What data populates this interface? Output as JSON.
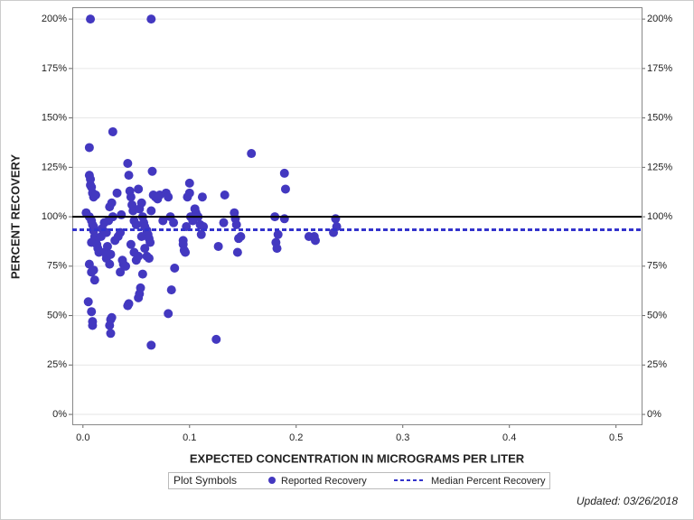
{
  "chart_data": {
    "type": "scatter",
    "x_label": "EXPECTED CONCENTRATION IN MICROGRAMS PER LITER",
    "y_label": "PERCENT RECOVERY",
    "x": [
      0.007,
      0.064,
      0.006,
      0.028,
      0.006,
      0.007,
      0.007,
      0.008,
      0.009,
      0.01,
      0.012,
      0.003,
      0.006,
      0.008,
      0.009,
      0.01,
      0.011,
      0.012,
      0.013,
      0.008,
      0.01,
      0.014,
      0.015,
      0.017,
      0.018,
      0.02,
      0.022,
      0.024,
      0.025,
      0.027,
      0.028,
      0.025,
      0.022,
      0.02,
      0.023,
      0.026,
      0.03,
      0.032,
      0.033,
      0.035,
      0.036,
      0.037,
      0.038,
      0.035,
      0.04,
      0.042,
      0.043,
      0.044,
      0.045,
      0.046,
      0.047,
      0.048,
      0.05,
      0.052,
      0.053,
      0.055,
      0.056,
      0.057,
      0.058,
      0.06,
      0.061,
      0.062,
      0.063,
      0.064,
      0.065,
      0.066,
      0.068,
      0.07,
      0.072,
      0.075,
      0.078,
      0.08,
      0.082,
      0.085,
      0.045,
      0.048,
      0.05,
      0.052,
      0.055,
      0.058,
      0.06,
      0.062,
      0.006,
      0.008,
      0.01,
      0.011,
      0.005,
      0.008,
      0.009,
      0.009,
      0.026,
      0.027,
      0.025,
      0.026,
      0.042,
      0.043,
      0.052,
      0.053,
      0.054,
      0.056,
      0.064,
      0.08,
      0.083,
      0.086,
      0.094,
      0.094,
      0.095,
      0.096,
      0.097,
      0.098,
      0.1,
      0.1,
      0.101,
      0.103,
      0.105,
      0.106,
      0.108,
      0.11,
      0.111,
      0.112,
      0.113,
      0.125,
      0.127,
      0.132,
      0.133,
      0.142,
      0.143,
      0.144,
      0.145,
      0.146,
      0.148,
      0.158,
      0.18,
      0.181,
      0.182,
      0.183,
      0.189,
      0.19,
      0.189,
      0.212,
      0.217,
      0.218,
      0.235,
      0.237,
      0.238
    ],
    "series": [
      {
        "name": "Reported Recovery",
        "color": "#4338c0",
        "values": [
          200,
          200,
          135,
          143,
          121,
          119,
          116,
          115,
          112,
          110,
          111,
          102,
          100,
          98,
          96,
          93,
          90,
          88,
          86,
          87,
          95,
          84,
          82,
          90,
          94,
          97,
          92,
          98,
          105,
          107,
          100,
          76,
          79,
          82,
          85,
          81,
          88,
          112,
          90,
          92,
          101,
          78,
          76,
          72,
          75,
          127,
          121,
          113,
          110,
          106,
          103,
          98,
          96,
          114,
          104,
          107,
          100,
          97,
          95,
          93,
          91,
          89,
          87,
          103,
          123,
          111,
          110,
          109,
          111,
          98,
          112,
          110,
          100,
          97,
          86,
          82,
          78,
          80,
          90,
          84,
          80,
          79,
          76,
          72,
          73,
          68,
          57,
          52,
          47,
          45,
          48,
          49,
          45,
          41,
          55,
          56,
          59,
          61,
          64,
          71,
          35,
          51,
          63,
          74,
          88,
          86,
          83,
          82,
          95,
          110,
          112,
          117,
          100,
          98,
          104,
          102,
          100,
          96,
          91,
          110,
          95,
          38,
          85,
          97,
          111,
          102,
          99,
          96,
          82,
          89,
          90,
          132,
          100,
          87,
          84,
          91,
          122,
          114,
          99,
          90,
          90,
          88,
          92,
          99,
          95
        ]
      }
    ],
    "reference_line": {
      "value": 100,
      "color": "#000000"
    },
    "median_line": {
      "name": "Median Percent Recovery",
      "value": 93.4,
      "color": "#3333cc"
    },
    "legend_title": "Plot Symbols",
    "xlim": [
      -0.01,
      0.524
    ],
    "xticks": [
      {
        "value": 0,
        "label": "0.0"
      },
      0.1,
      0.2,
      0.3,
      0.4,
      0.5
    ],
    "ylim": [
      -5,
      206
    ],
    "yticks": [
      {
        "value": 0,
        "label": "0%"
      },
      {
        "value": 25,
        "label": "25%"
      },
      {
        "value": 50,
        "label": "50%"
      },
      {
        "value": 75,
        "label": "75%"
      },
      {
        "value": 100,
        "label": "100%"
      },
      {
        "value": 125,
        "label": "125%"
      },
      {
        "value": 150,
        "label": "150%"
      },
      {
        "value": 175,
        "label": "175%"
      },
      {
        "value": 200,
        "label": "200%"
      }
    ],
    "y2lim": [
      -5,
      206
    ],
    "y2ticks": [
      {
        "value": 0,
        "label": "0%"
      },
      {
        "value": 25,
        "label": "25%"
      },
      {
        "value": 50,
        "label": "50%"
      },
      {
        "value": 75,
        "label": "75%"
      },
      {
        "value": 100,
        "label": "100%"
      },
      {
        "value": 125,
        "label": "125%"
      },
      {
        "value": 150,
        "label": "150%"
      },
      {
        "value": 175,
        "label": "175%"
      },
      {
        "value": 200,
        "label": "200%"
      }
    ],
    "grid": true,
    "footer": "Updated: 03/26/2018"
  }
}
